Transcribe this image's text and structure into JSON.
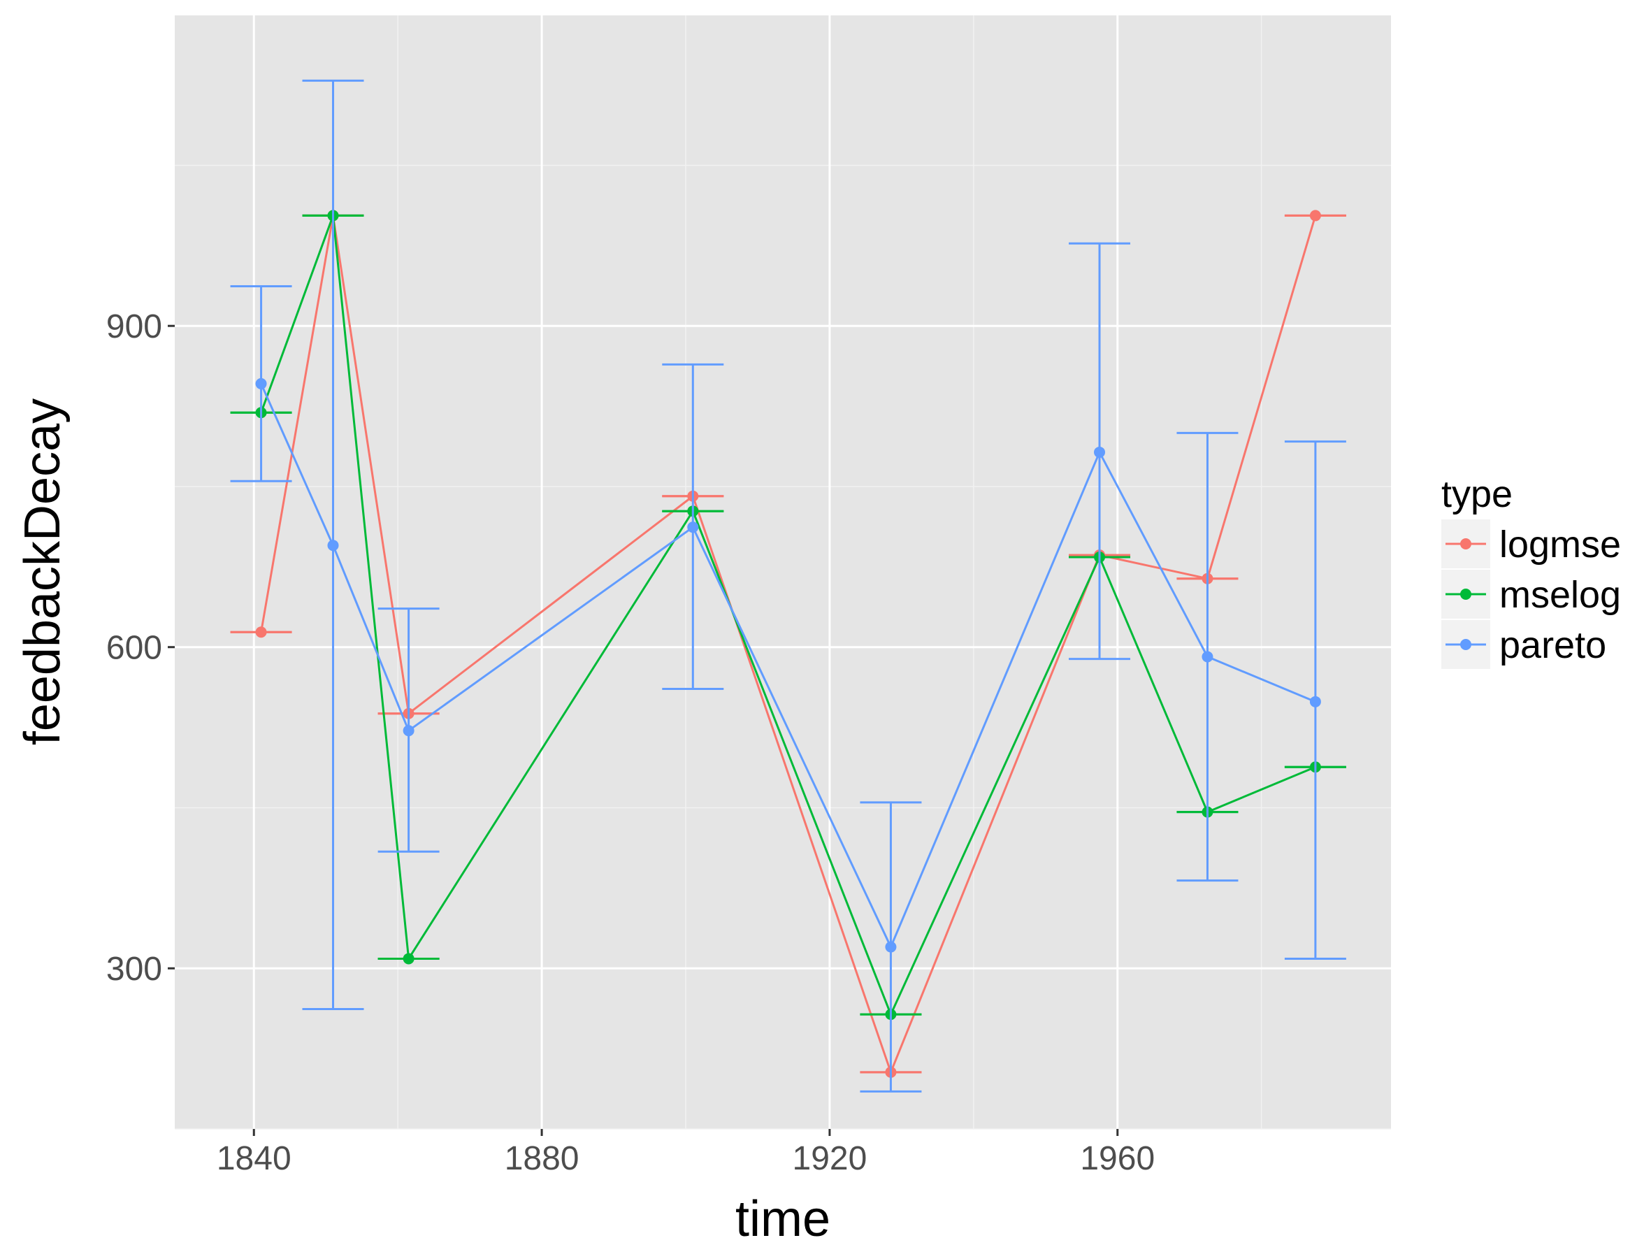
{
  "chart_data": {
    "type": "line",
    "xlabel": "time",
    "ylabel": "feedbackDecay",
    "xlim": [
      1829,
      1998
    ],
    "ylim": [
      150,
      1190
    ],
    "x_ticks": [
      1840,
      1880,
      1920,
      1960
    ],
    "x_minor_ticks": [
      1860,
      1900,
      1940,
      1980
    ],
    "y_ticks": [
      300,
      600,
      900
    ],
    "y_minor_ticks": [
      150,
      450,
      750,
      1050
    ],
    "grid": true,
    "legend": {
      "title": "type",
      "position": "right"
    },
    "series": [
      {
        "name": "logmse",
        "color": "#F8766D",
        "x": [
          1841,
          1851,
          1861.5,
          1901,
          1928.5,
          1957.5,
          1972.5,
          1987.5
        ],
        "y": [
          614,
          1003,
          538,
          741,
          203,
          686,
          664,
          1003
        ],
        "err_low": [
          614,
          1003,
          538,
          741,
          203,
          686,
          664,
          1003
        ],
        "err_high": [
          614,
          1003,
          538,
          741,
          203,
          686,
          664,
          1003
        ]
      },
      {
        "name": "mselog",
        "color": "#00BA38",
        "x": [
          1841,
          1851,
          1861.5,
          1901,
          1928.5,
          1957.5,
          1972.5,
          1987.5
        ],
        "y": [
          819,
          1003,
          309,
          727,
          257,
          684,
          446,
          488
        ],
        "err_low": [
          819,
          1003,
          309,
          727,
          257,
          684,
          446,
          488
        ],
        "err_high": [
          819,
          1003,
          309,
          727,
          257,
          684,
          446,
          488
        ]
      },
      {
        "name": "pareto",
        "color": "#619CFF",
        "x": [
          1841,
          1851,
          1861.5,
          1901,
          1928.5,
          1957.5,
          1972.5,
          1987.5
        ],
        "y": [
          846,
          695,
          522,
          712,
          320,
          782,
          591,
          549
        ],
        "err_low": [
          755,
          262,
          409,
          561,
          185,
          589,
          382,
          309
        ],
        "err_high": [
          937,
          1129,
          636,
          864,
          455,
          977,
          800,
          792
        ]
      }
    ]
  }
}
